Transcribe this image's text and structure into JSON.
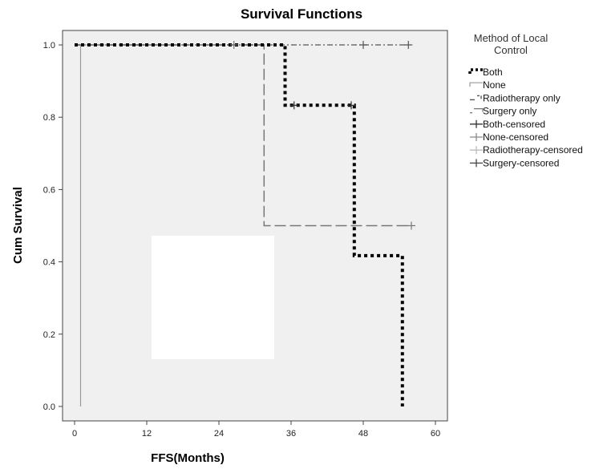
{
  "chart_data": {
    "type": "line",
    "title": "Survival Functions",
    "xlabel": "FFS(Months)",
    "ylabel": "Cum Survival",
    "xlim": [
      -2,
      62
    ],
    "ylim": [
      -0.04,
      1.04
    ],
    "xticks": [
      0,
      12,
      24,
      36,
      48,
      60
    ],
    "xtick_labels": [
      "0",
      "12",
      "24",
      "36",
      "48",
      "60"
    ],
    "yticks": [
      0.0,
      0.2,
      0.4,
      0.6,
      0.8,
      1.0
    ],
    "ytick_labels": [
      "0.0",
      "0.2",
      "0.4",
      "0.6",
      "0.8",
      "1.0"
    ],
    "grid": false,
    "legend_title": "Method of Local Control",
    "legend_title_lines": [
      "Method of Local",
      "Control"
    ],
    "legend_position": "right",
    "background": "#f0f0f0",
    "series": [
      {
        "name": "Both",
        "color": "#000000",
        "style": "dotted-thick",
        "steps": [
          [
            0,
            1.0
          ],
          [
            35,
            1.0
          ],
          [
            35,
            0.833
          ],
          [
            46.5,
            0.833
          ],
          [
            46.5,
            0.417
          ],
          [
            54.5,
            0.417
          ],
          [
            54.5,
            0.0
          ]
        ],
        "censored": [
          [
            36.5,
            0.833
          ],
          [
            46,
            0.833
          ]
        ]
      },
      {
        "name": "None",
        "color": "#999999",
        "style": "solid",
        "steps": [
          [
            0,
            1.0
          ],
          [
            1,
            1.0
          ],
          [
            1,
            0.0
          ]
        ],
        "censored": []
      },
      {
        "name": "Radiotherapy only",
        "color": "#555555",
        "style": "dash-dot",
        "steps": [
          [
            0,
            1.0
          ],
          [
            55.5,
            1.0
          ]
        ],
        "censored": [
          [
            48,
            1.0
          ],
          [
            55.5,
            1.0
          ]
        ]
      },
      {
        "name": "Surgery only",
        "color": "#777777",
        "style": "long-dash",
        "steps": [
          [
            0,
            1.0
          ],
          [
            31.5,
            1.0
          ],
          [
            31.5,
            0.5
          ],
          [
            56,
            0.5
          ]
        ],
        "censored": [
          [
            26.5,
            1.0
          ],
          [
            56,
            0.5
          ]
        ]
      }
    ],
    "legend": [
      {
        "label": "Both",
        "key": "dotted-thick",
        "color": "#000000"
      },
      {
        "label": "None",
        "key": "step-solid",
        "color": "#999999"
      },
      {
        "label": "Radiotherapy only",
        "key": "dash-dot",
        "color": "#555555"
      },
      {
        "label": "Surgery only",
        "key": "step-dash",
        "color": "#777777"
      },
      {
        "label": "Both-censored",
        "key": "plus",
        "color": "#333333"
      },
      {
        "label": "None-censored",
        "key": "plus",
        "color": "#888888"
      },
      {
        "label": "Radiotherapy-censored",
        "key": "plus",
        "color": "#bbbbbb"
      },
      {
        "label": "Surgery-censored",
        "key": "plus",
        "color": "#444444"
      }
    ]
  }
}
